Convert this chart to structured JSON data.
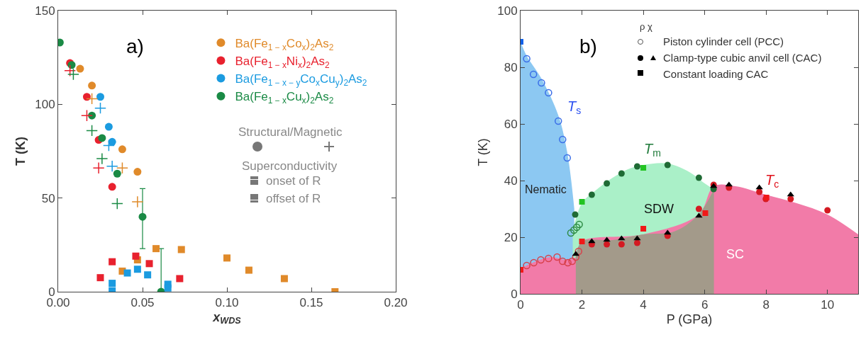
{
  "chart_data": [
    {
      "type": "scatter",
      "xlabel": "x$_{WDS}$",
      "ylabel": "T (K)",
      "xlim": [
        0,
        0.2
      ],
      "ylim": [
        0,
        150
      ],
      "xticks": [
        {
          "value": 0,
          "label": "0.00"
        },
        {
          "value": 0.05,
          "label": "0.05"
        },
        {
          "value": 0.1,
          "label": "0.10"
        },
        {
          "value": 0.15,
          "label": "0.15"
        },
        {
          "value": 0.2,
          "label": "0.20"
        }
      ],
      "yticks": [
        0,
        50,
        100,
        150
      ],
      "grid": false,
      "legend": "top right",
      "annotations": [
        "a)",
        "Structural/Magnetic",
        "Superconductivity",
        "onset of R",
        "offset of R"
      ],
      "series": [
        {
          "name": "Ba(Fe$_{1 − x}$Co$_{x}$)$_{2}$As$_{2}$",
          "color": "#e08a2a",
          "marker": "circle",
          "x": [
            0.013,
            0.02,
            0.038,
            0.047
          ],
          "values": [
            119,
            110,
            76,
            64
          ]
        },
        {
          "name": "Ba(Fe$_{1 − x}$Ni$_{x}$)$_{2}$As$_{2}$",
          "color": "#e8212e",
          "marker": "circle",
          "x": [
            0.007,
            0.017,
            0.024,
            0.032
          ],
          "values": [
            122,
            104,
            81,
            56
          ]
        },
        {
          "name": "Ba(Fe$_{1 − x − y}$Co$_{x}$Cu$_{y}$)$_{2}$As$_{2}$",
          "color": "#1b9be0",
          "marker": "circle",
          "x": [
            0.025,
            0.03,
            0.032
          ],
          "values": [
            104,
            88,
            80
          ]
        },
        {
          "name": "Ba(Fe$_{1 − x}$Cu$_{x}$)$_{2}$As$_{2}$",
          "color": "#1a8a45",
          "marker": "circle",
          "x": [
            0.001,
            0.008,
            0.02,
            0.026,
            0.035,
            0.05,
            0.061
          ],
          "values": [
            133,
            121,
            94,
            82,
            63,
            40,
            0
          ],
          "errors": [
            null,
            null,
            null,
            null,
            null,
            [
              23,
              55
            ],
            [
              0,
              23
            ]
          ]
        },
        {
          "color": "#e08a2a",
          "marker": "cross",
          "x": [
            0.02,
            0.038,
            0.047
          ],
          "values": [
            103,
            66,
            48
          ]
        },
        {
          "color": "#e8212e",
          "marker": "cross",
          "x": [
            0.007,
            0.017,
            0.024
          ],
          "values": [
            118,
            94,
            66
          ]
        },
        {
          "color": "#1b9be0",
          "marker": "cross",
          "x": [
            0.025,
            0.03,
            0.032
          ],
          "values": [
            98,
            78,
            67
          ]
        },
        {
          "color": "#1a8a45",
          "marker": "cross",
          "x": [
            0.009,
            0.02,
            0.026,
            0.035
          ],
          "values": [
            116,
            86,
            71,
            47
          ]
        },
        {
          "color": "#e08a2a",
          "marker": "square",
          "x": [
            0.038,
            0.047,
            0.058,
            0.073,
            0.1,
            0.113,
            0.134,
            0.164
          ],
          "values": [
            11,
            17,
            23,
            22.5,
            18,
            11.5,
            7,
            0
          ]
        },
        {
          "color": "#e8212e",
          "marker": "square",
          "x": [
            0.025,
            0.032,
            0.046,
            0.054,
            0.072
          ],
          "values": [
            7.5,
            16,
            19,
            15,
            7
          ]
        },
        {
          "color": "#1b9be0",
          "marker": "square",
          "x": [
            0.032,
            0.032,
            0.041,
            0.047,
            0.053,
            0.065,
            0.065
          ],
          "values": [
            4.5,
            0.5,
            10,
            12,
            9,
            4,
            2
          ]
        }
      ]
    },
    {
      "type": "scatter",
      "xlabel": "P (GPa)",
      "ylabel": "T (K)",
      "xlim": [
        0,
        11
      ],
      "ylim": [
        0,
        100
      ],
      "xticks": [
        0,
        2,
        4,
        6,
        8,
        10
      ],
      "yticks": [
        0,
        20,
        40,
        60,
        80,
        100
      ],
      "grid": false,
      "annotations": [
        "b)",
        "ρ χ",
        "Piston cylinder cell (PCC)",
        "Clamp-type cubic anvil cell (CAC)",
        "Constant loading CAC",
        "T$_{s}$",
        "T$_{m}$",
        "T$_{c}$",
        "Nematic",
        "SDW",
        "SC"
      ],
      "series": [
        {
          "type": "area",
          "color": "#8cc8f2",
          "x": [
            0,
            0.2,
            0.68,
            1.23,
            1.52,
            1.75
          ],
          "values": [
            89,
            84,
            76,
            63,
            50,
            30
          ]
        },
        {
          "type": "area",
          "color": "#aaf0c8",
          "x": [
            1.7,
            2,
            2.5,
            3,
            3.5,
            4,
            4.8,
            5.5,
            6,
            6.3
          ],
          "values": [
            22,
            32,
            37,
            41,
            44,
            45.5,
            46,
            43,
            39,
            37
          ]
        },
        {
          "type": "area",
          "color": "#f27ba8",
          "x": [
            0,
            0.5,
            1,
            1.5,
            1.8,
            2,
            4,
            5.8,
            6.3,
            7,
            8,
            9,
            10,
            11
          ],
          "values": [
            9,
            11.5,
            13,
            12,
            13,
            18.5,
            21,
            28,
            38,
            38,
            35,
            32,
            28,
            21
          ]
        },
        {
          "type": "area",
          "color": "#a39a8a",
          "x": [
            1.8,
            2,
            3,
            4,
            5,
            5.8,
            6.3
          ],
          "values": [
            13,
            18.5,
            19,
            21,
            22,
            28,
            37
          ]
        },
        {
          "color": "#3a6ee8",
          "marker": "circle",
          "x": [
            0.2,
            0.42,
            0.68,
            0.91,
            1.23,
            1.37,
            1.52
          ],
          "values": [
            83,
            77.5,
            74.5,
            71,
            61,
            54.5,
            48
          ]
        },
        {
          "color": "#2e8b45",
          "marker": "circle",
          "x": [
            1.64,
            1.74,
            1.83,
            1.91
          ],
          "values": [
            21.5,
            22.5,
            23.5,
            24.5
          ]
        },
        {
          "color": "#d8404a",
          "marker": "circle",
          "x": [
            0.2,
            0.43,
            0.66,
            0.91,
            1.19,
            1.37,
            1.54,
            1.68,
            1.8,
            1.89
          ],
          "values": [
            10,
            11,
            12,
            12.5,
            13,
            11.5,
            11,
            11.5,
            13,
            15
          ]
        },
        {
          "color": "#1f6b35",
          "marker": "circle",
          "x": [
            1.78,
            2.32,
            2.81,
            3.29,
            3.8,
            4.79,
            5.81,
            6.29
          ],
          "values": [
            28,
            35,
            39,
            42.5,
            45,
            45.5,
            41,
            37
          ]
        },
        {
          "color": "#d41a22",
          "marker": "circle",
          "x": [
            2.32,
            2.81,
            3.29,
            3.8,
            4.79,
            5.81,
            6.29,
            6.79,
            7.78,
            7.99,
            8.8,
            10
          ],
          "values": [
            17.5,
            17.5,
            17.5,
            18,
            20.5,
            30,
            38.5,
            37.5,
            36,
            33.5,
            33.5,
            29.5
          ]
        },
        {
          "color": "#000000",
          "marker": "triangle",
          "x": [
            1.8,
            2.32,
            2.81,
            3.29,
            3.8,
            4.79,
            5.81,
            6.29,
            6.79,
            7.78,
            8.8
          ],
          "values": [
            14,
            18.5,
            19,
            19.5,
            19.5,
            21.5,
            27.5,
            38,
            38.5,
            37.5,
            35
          ]
        },
        {
          "color": "#1060e8",
          "marker": "square",
          "x": [
            0
          ],
          "values": [
            89
          ]
        },
        {
          "color": "#22c422",
          "marker": "square",
          "x": [
            2,
            4
          ],
          "values": [
            32.5,
            44.5
          ]
        },
        {
          "color": "#f01818",
          "marker": "square",
          "x": [
            0,
            2,
            4,
            6.02,
            8.01
          ],
          "values": [
            8.5,
            18.5,
            23,
            28.5,
            34
          ]
        }
      ]
    }
  ]
}
